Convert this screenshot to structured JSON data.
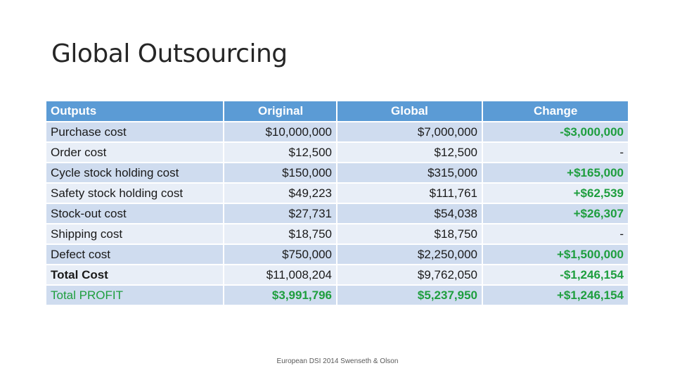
{
  "title": "Global Outsourcing",
  "table": {
    "headers": [
      "Outputs",
      "Original",
      "Global",
      "Change"
    ],
    "rows": [
      {
        "label": "Purchase cost",
        "original": "$10,000,000",
        "global": "$7,000,000",
        "change": "-$3,000,000"
      },
      {
        "label": "Order cost",
        "original": "$12,500",
        "global": "$12,500",
        "change": "-"
      },
      {
        "label": "Cycle stock holding cost",
        "original": "$150,000",
        "global": "$315,000",
        "change": "+$165,000"
      },
      {
        "label": "Safety stock holding cost",
        "original": "$49,223",
        "global": "$111,761",
        "change": "+$62,539"
      },
      {
        "label": "Stock-out cost",
        "original": "$27,731",
        "global": "$54,038",
        "change": "+$26,307"
      },
      {
        "label": "Shipping cost",
        "original": "$18,750",
        "global": "$18,750",
        "change": "-"
      },
      {
        "label": "Defect cost",
        "original": "$750,000",
        "global": "$2,250,000",
        "change": "+$1,500,000"
      },
      {
        "label": "Total Cost",
        "original": "$11,008,204",
        "global": "$9,762,050",
        "change": "-$1,246,154"
      },
      {
        "label": "Total PROFIT",
        "original": "$3,991,796",
        "global": "$5,237,950",
        "change": "+$1,246,154"
      }
    ]
  },
  "colors": {
    "header": "#5b9bd5",
    "row_dark": "#cfdcef",
    "row_light": "#e8eef7",
    "positive_green": "#1e9e3e"
  },
  "footer": "European DSI 2014 Swenseth & Olson"
}
